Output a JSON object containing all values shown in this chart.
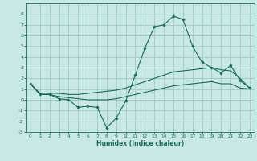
{
  "xlabel": "Humidex (Indice chaleur)",
  "bg_color": "#c8e8e4",
  "grid_color": "#a0c8c4",
  "line_color": "#1a6b5a",
  "x": [
    0,
    1,
    2,
    3,
    4,
    5,
    6,
    7,
    8,
    9,
    10,
    11,
    12,
    13,
    14,
    15,
    16,
    17,
    18,
    19,
    20,
    21,
    22,
    23
  ],
  "line_main": [
    1.5,
    0.5,
    0.5,
    0.1,
    0.0,
    -0.7,
    -0.6,
    -0.7,
    -2.6,
    -1.7,
    -0.1,
    2.3,
    4.8,
    6.8,
    7.0,
    7.8,
    7.5,
    5.0,
    3.5,
    3.0,
    2.5,
    3.2,
    1.8,
    1.1
  ],
  "line_upper": [
    1.5,
    0.6,
    0.6,
    0.6,
    0.5,
    0.5,
    0.6,
    0.7,
    0.8,
    0.9,
    1.1,
    1.4,
    1.7,
    2.0,
    2.3,
    2.6,
    2.7,
    2.8,
    2.9,
    3.0,
    2.8,
    2.7,
    2.0,
    1.1
  ],
  "line_lower": [
    1.5,
    0.5,
    0.5,
    0.3,
    0.2,
    0.1,
    0.0,
    0.0,
    0.0,
    0.1,
    0.3,
    0.5,
    0.7,
    0.9,
    1.1,
    1.3,
    1.4,
    1.5,
    1.6,
    1.7,
    1.5,
    1.5,
    1.1,
    1.0
  ],
  "ylim": [
    -3,
    9
  ],
  "xlim": [
    -0.5,
    23.5
  ],
  "yticks": [
    -3,
    -2,
    -1,
    0,
    1,
    2,
    3,
    4,
    5,
    6,
    7,
    8
  ],
  "xticks": [
    0,
    1,
    2,
    3,
    4,
    5,
    6,
    7,
    8,
    9,
    10,
    11,
    12,
    13,
    14,
    15,
    16,
    17,
    18,
    19,
    20,
    21,
    22,
    23
  ]
}
